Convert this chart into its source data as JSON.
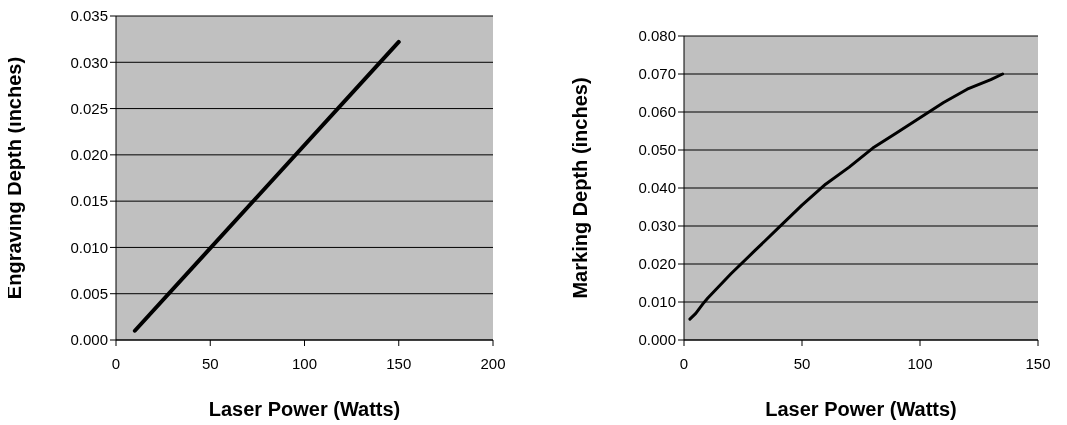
{
  "chart_data": [
    {
      "type": "line",
      "xlabel": "Laser Power (Watts)",
      "ylabel": "Engraving Depth (inches)",
      "xlim": [
        0,
        200
      ],
      "xticks": [
        0,
        50,
        100,
        150,
        200
      ],
      "ylim": [
        0,
        0.035
      ],
      "yticks": [
        {
          "value": 0,
          "label": "0.000"
        },
        {
          "value": 0.005,
          "label": "0.005"
        },
        {
          "value": 0.01,
          "label": "0.010"
        },
        {
          "value": 0.015,
          "label": "0.015"
        },
        {
          "value": 0.02,
          "label": "0.020"
        },
        {
          "value": 0.025,
          "label": "0.025"
        },
        {
          "value": 0.03,
          "label": "0.030"
        },
        {
          "value": 0.035,
          "label": "0.035"
        }
      ],
      "grid": "y",
      "marker": "none",
      "line_style": "solid",
      "series": [
        {
          "color": "#000000",
          "x": [
            10,
            150
          ],
          "values": [
            0.001,
            0.0322
          ]
        }
      ]
    },
    {
      "type": "line",
      "xlabel": "Laser Power (Watts)",
      "ylabel": "Marking Depth (inches)",
      "xlim": [
        0,
        150
      ],
      "xticks": [
        0,
        50,
        100,
        150
      ],
      "ylim": [
        0,
        0.08
      ],
      "yticks": [
        {
          "value": 0,
          "label": "0.000"
        },
        {
          "value": 0.01,
          "label": "0.010"
        },
        {
          "value": 0.02,
          "label": "0.020"
        },
        {
          "value": 0.03,
          "label": "0.030"
        },
        {
          "value": 0.04,
          "label": "0.040"
        },
        {
          "value": 0.05,
          "label": "0.050"
        },
        {
          "value": 0.06,
          "label": "0.060"
        },
        {
          "value": 0.07,
          "label": "0.070"
        },
        {
          "value": 0.08,
          "label": "0.080"
        }
      ],
      "grid": "y",
      "marker": "none",
      "line_style": "solid",
      "series": [
        {
          "color": "#000000",
          "x": [
            2.5,
            5,
            8,
            10,
            20,
            30,
            40,
            50,
            60,
            70,
            80,
            90,
            100,
            110,
            120,
            130,
            135
          ],
          "values": [
            0.0055,
            0.007,
            0.0095,
            0.011,
            0.0175,
            0.0235,
            0.0295,
            0.0355,
            0.041,
            0.0455,
            0.0505,
            0.0545,
            0.0585,
            0.0625,
            0.066,
            0.0685,
            0.07
          ]
        }
      ]
    }
  ]
}
